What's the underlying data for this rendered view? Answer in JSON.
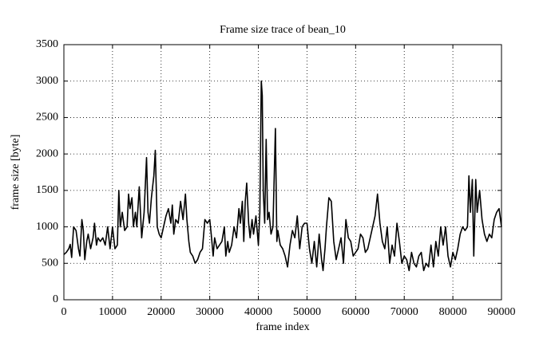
{
  "chart_data": {
    "type": "line",
    "title": "Frame size trace of bean_10",
    "xlabel": "frame index",
    "ylabel": "frame size [byte]",
    "xlim": [
      0,
      90000
    ],
    "ylim": [
      0,
      3500
    ],
    "xticks": [
      0,
      10000,
      20000,
      30000,
      40000,
      50000,
      60000,
      70000,
      80000,
      90000
    ],
    "yticks": [
      0,
      500,
      1000,
      1500,
      2000,
      2500,
      3000,
      3500
    ],
    "grid": true,
    "x": [
      0,
      500,
      1000,
      1300,
      1600,
      2000,
      2500,
      3000,
      3300,
      3700,
      4000,
      4300,
      4700,
      5000,
      5500,
      6000,
      6300,
      6700,
      7000,
      7500,
      8000,
      8500,
      9000,
      9500,
      10000,
      10500,
      11000,
      11300,
      11600,
      12000,
      12500,
      13000,
      13300,
      13600,
      14000,
      14300,
      14700,
      15000,
      15500,
      16000,
      16500,
      17000,
      17300,
      17600,
      18000,
      18500,
      18800,
      19200,
      19600,
      20000,
      20500,
      21000,
      21500,
      22000,
      22300,
      22600,
      23000,
      23500,
      24000,
      24500,
      25000,
      25300,
      25700,
      26000,
      26500,
      27000,
      27500,
      28000,
      28500,
      29000,
      29500,
      30000,
      30300,
      30700,
      31000,
      31500,
      32000,
      32500,
      33000,
      33300,
      33700,
      34000,
      34500,
      35000,
      35500,
      36000,
      36300,
      36700,
      37000,
      37300,
      37600,
      38000,
      38300,
      38700,
      39000,
      39500,
      40000,
      40300,
      40600,
      40800,
      41000,
      41300,
      41600,
      41900,
      42200,
      42600,
      43000,
      43500,
      43800,
      44000,
      44500,
      45000,
      45500,
      46000,
      46500,
      47000,
      47500,
      48000,
      48500,
      49000,
      49500,
      50000,
      50500,
      51000,
      51500,
      52000,
      52500,
      53000,
      53300,
      53700,
      54000,
      54500,
      55000,
      55500,
      56000,
      56500,
      57000,
      57500,
      58000,
      58500,
      59000,
      59500,
      60000,
      60500,
      61000,
      61500,
      62000,
      62500,
      63000,
      63500,
      64000,
      64500,
      65000,
      65500,
      66000,
      66500,
      67000,
      67500,
      68000,
      68500,
      69000,
      69500,
      70000,
      70500,
      71000,
      71500,
      72000,
      72500,
      73000,
      73500,
      74000,
      74500,
      75000,
      75500,
      76000,
      76500,
      77000,
      77500,
      78000,
      78500,
      79000,
      79500,
      80000,
      80500,
      81000,
      81500,
      82000,
      82500,
      83000,
      83300,
      83600,
      84000,
      84300,
      84700,
      85000,
      85500,
      86000,
      86500,
      87000,
      87500,
      88000,
      88500,
      89000,
      89500,
      90000
    ],
    "series": [
      {
        "color": "#000000",
        "values": [
          620,
          650,
          700,
          760,
          580,
          1000,
          950,
          700,
          600,
          1100,
          950,
          550,
          800,
          900,
          700,
          850,
          1050,
          750,
          850,
          800,
          850,
          750,
          1000,
          700,
          1000,
          700,
          750,
          1500,
          1000,
          1200,
          950,
          1000,
          1450,
          1250,
          1400,
          1000,
          1200,
          1000,
          1550,
          850,
          1200,
          1950,
          1200,
          1050,
          1400,
          1700,
          2050,
          1000,
          900,
          850,
          1000,
          1150,
          1250,
          1050,
          1300,
          900,
          1100,
          1050,
          1350,
          1100,
          1450,
          1100,
          800,
          650,
          600,
          500,
          550,
          650,
          700,
          1100,
          1050,
          1100,
          900,
          600,
          850,
          700,
          750,
          800,
          1000,
          600,
          800,
          650,
          750,
          1000,
          850,
          1250,
          1050,
          1350,
          800,
          1350,
          1600,
          1050,
          850,
          1100,
          900,
          1150,
          750,
          1200,
          3000,
          2800,
          1500,
          1050,
          2200,
          1100,
          1200,
          900,
          1000,
          2350,
          800,
          950,
          750,
          700,
          600,
          450,
          750,
          950,
          850,
          1150,
          700,
          1000,
          1050,
          1050,
          700,
          500,
          800,
          450,
          900,
          550,
          400,
          700,
          1000,
          1400,
          1350,
          800,
          550,
          700,
          850,
          500,
          1100,
          850,
          800,
          600,
          650,
          700,
          900,
          850,
          650,
          700,
          850,
          1000,
          1150,
          1450,
          1050,
          800,
          700,
          1000,
          500,
          750,
          600,
          1050,
          800,
          500,
          600,
          550,
          400,
          650,
          500,
          450,
          600,
          650,
          400,
          500,
          450,
          750,
          450,
          800,
          600,
          1000,
          750,
          1000,
          600,
          450,
          650,
          550,
          700,
          900,
          1000,
          950,
          1000,
          1700,
          1200,
          1650,
          600,
          1650,
          1200,
          1500,
          1100,
          900,
          800,
          900,
          850,
          1100,
          1200,
          1250,
          1000
        ]
      }
    ]
  }
}
